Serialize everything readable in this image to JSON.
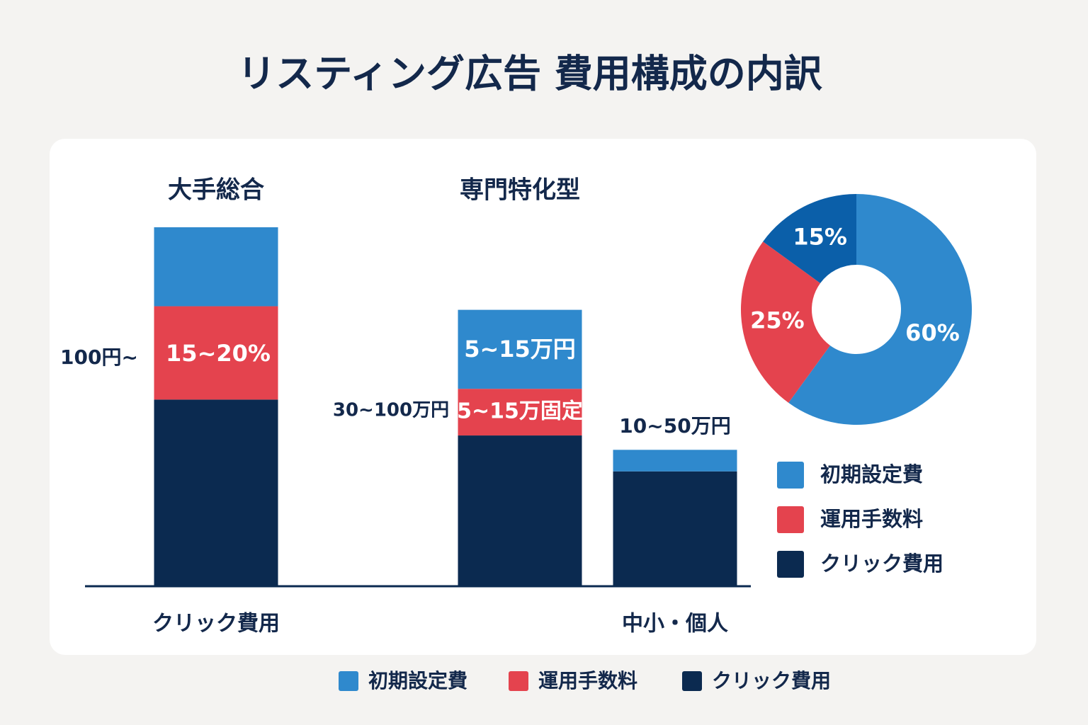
{
  "chart_data": [
    {
      "type": "bar",
      "stacked": true,
      "title": "リスティング広告 費用構成の内訳",
      "categories": [
        "クリック費用",
        null,
        "中小・個人"
      ],
      "series": [
        {
          "name": "クリック費用",
          "color": "#0b2a50",
          "values": [
            52,
            42,
            32
          ]
        },
        {
          "name": "運用手数料",
          "color": "#e4434e",
          "values": [
            26,
            13,
            0
          ]
        },
        {
          "name": "初期設定費",
          "color": "#2f89cd",
          "values": [
            22,
            22,
            6
          ]
        }
      ],
      "ylim": [
        0,
        100
      ],
      "annotations": [
        "大手総合",
        "専門特化型",
        "100円~",
        "15~20%",
        "5~15万円",
        "30~100万円",
        "5~15万固定",
        "10~50万円"
      ]
    },
    {
      "type": "pie",
      "categories": [
        "初期設定費",
        "運用手数料",
        "クリック費用"
      ],
      "values": [
        60,
        25,
        15
      ],
      "value_labels": [
        "60%",
        "25%",
        "15%"
      ],
      "colors": [
        "#2f89cd",
        "#e4434e",
        "#0b5fa9"
      ]
    }
  ]
}
